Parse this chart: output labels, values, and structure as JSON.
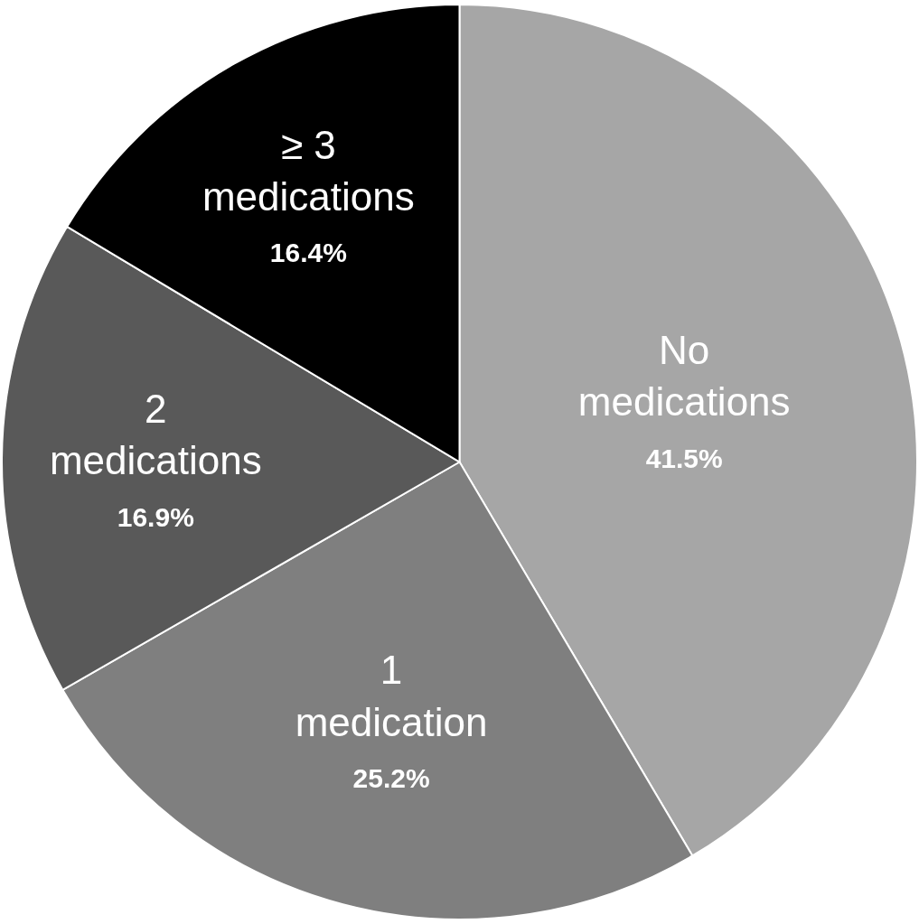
{
  "chart_data": {
    "type": "pie",
    "categories": [
      "No medications",
      "1 medication",
      "2 medications",
      "≥ 3 medications"
    ],
    "values": [
      41.5,
      25.2,
      16.9,
      16.4
    ],
    "value_labels": [
      "41.5%",
      "25.2%",
      "16.9%",
      "16.4%"
    ],
    "colors": [
      "#a6a6a6",
      "#7f7f7f",
      "#595959",
      "#000000"
    ],
    "legend": false
  }
}
